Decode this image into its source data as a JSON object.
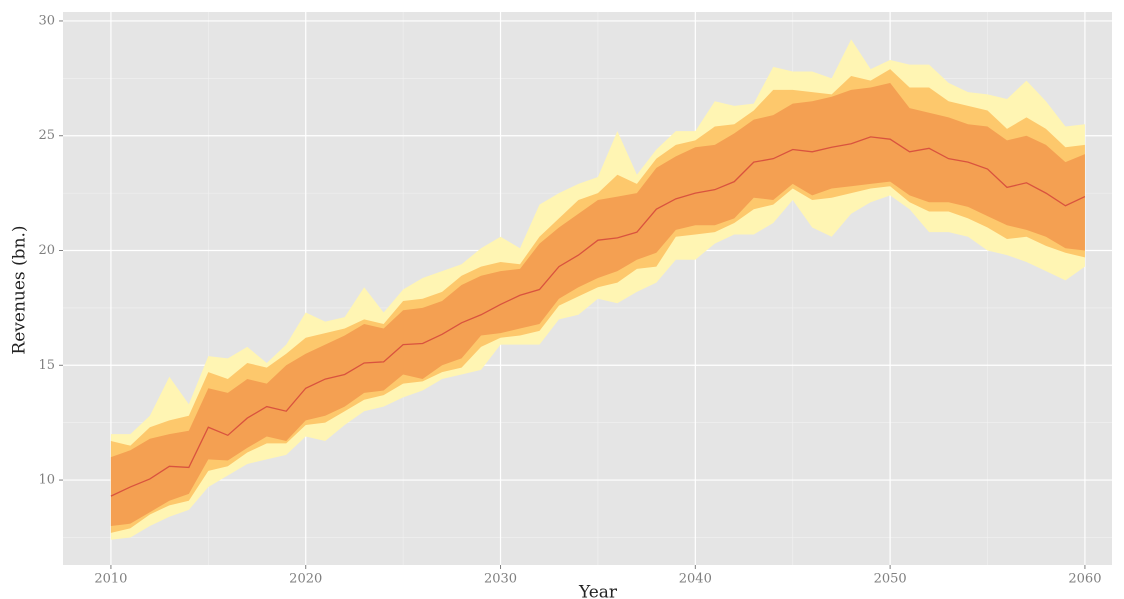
{
  "chart_data": {
    "type": "fan",
    "x_label": "Year",
    "y_label": "Revenues (bn.)",
    "x": [
      2010,
      2011,
      2012,
      2013,
      2014,
      2015,
      2016,
      2017,
      2018,
      2019,
      2020,
      2021,
      2022,
      2023,
      2024,
      2025,
      2026,
      2027,
      2028,
      2029,
      2030,
      2031,
      2032,
      2033,
      2034,
      2035,
      2036,
      2037,
      2038,
      2039,
      2040,
      2041,
      2042,
      2043,
      2044,
      2045,
      2046,
      2047,
      2048,
      2049,
      2050,
      2051,
      2052,
      2053,
      2054,
      2055,
      2056,
      2057,
      2058,
      2059,
      2060
    ],
    "bands": [
      {
        "color": "#fff5b3",
        "upper": [
          12.0,
          12.0,
          12.8,
          14.5,
          13.3,
          15.4,
          15.3,
          15.8,
          15.1,
          15.9,
          17.3,
          16.9,
          17.1,
          18.4,
          17.3,
          18.3,
          18.8,
          19.1,
          19.4,
          20.1,
          20.6,
          20.1,
          22.0,
          22.5,
          22.9,
          23.2,
          25.2,
          23.3,
          24.4,
          25.2,
          25.2,
          26.5,
          26.3,
          26.4,
          28.0,
          27.8,
          27.8,
          27.5,
          29.2,
          27.9,
          28.3,
          28.1,
          28.1,
          27.3,
          26.9,
          26.8,
          26.6,
          27.4,
          26.5,
          25.4,
          25.5
        ],
        "lower": [
          7.4,
          7.5,
          8.0,
          8.4,
          8.7,
          9.7,
          10.2,
          10.7,
          10.9,
          11.1,
          11.9,
          11.7,
          12.4,
          13.0,
          13.2,
          13.6,
          13.9,
          14.4,
          14.6,
          14.8,
          15.9,
          15.9,
          15.9,
          17.0,
          17.2,
          17.9,
          17.7,
          18.2,
          18.6,
          19.6,
          19.6,
          20.3,
          20.7,
          20.7,
          21.2,
          22.2,
          21.0,
          20.6,
          21.6,
          22.1,
          22.4,
          21.8,
          20.8,
          20.8,
          20.6,
          20.0,
          19.8,
          19.5,
          19.1,
          18.7,
          19.3
        ]
      },
      {
        "color": "#fdc86c",
        "upper": [
          11.7,
          11.5,
          12.3,
          12.6,
          12.8,
          14.7,
          14.4,
          15.1,
          14.9,
          15.5,
          16.2,
          16.4,
          16.6,
          17.0,
          16.8,
          17.8,
          17.9,
          18.2,
          18.9,
          19.3,
          19.5,
          19.4,
          20.6,
          21.4,
          22.2,
          22.5,
          23.3,
          22.9,
          24.0,
          24.6,
          24.8,
          25.4,
          25.5,
          26.1,
          27.0,
          27.0,
          26.9,
          26.8,
          27.6,
          27.4,
          27.9,
          27.1,
          27.1,
          26.5,
          26.3,
          26.1,
          25.3,
          25.8,
          25.3,
          24.5,
          24.6
        ],
        "lower": [
          7.7,
          7.9,
          8.5,
          8.9,
          9.1,
          10.4,
          10.6,
          11.2,
          11.6,
          11.6,
          12.4,
          12.5,
          13.0,
          13.5,
          13.7,
          14.2,
          14.3,
          14.7,
          14.9,
          15.8,
          16.2,
          16.3,
          16.5,
          17.6,
          18.0,
          18.4,
          18.6,
          19.2,
          19.3,
          20.6,
          20.7,
          20.8,
          21.2,
          21.8,
          22.0,
          22.7,
          22.2,
          22.3,
          22.5,
          22.7,
          22.8,
          22.1,
          21.7,
          21.7,
          21.4,
          21.0,
          20.5,
          20.6,
          20.2,
          19.9,
          19.7
        ]
      },
      {
        "color": "#f4a052",
        "upper": [
          11.0,
          11.3,
          11.8,
          12.0,
          12.15,
          14.0,
          13.8,
          14.4,
          14.2,
          15.0,
          15.5,
          15.9,
          16.3,
          16.8,
          16.6,
          17.4,
          17.5,
          17.8,
          18.5,
          18.9,
          19.1,
          19.2,
          20.3,
          21.0,
          21.6,
          22.2,
          22.35,
          22.5,
          23.6,
          24.1,
          24.5,
          24.6,
          25.1,
          25.7,
          25.9,
          26.4,
          26.5,
          26.7,
          27.0,
          27.1,
          27.3,
          26.2,
          26.0,
          25.8,
          25.5,
          25.4,
          24.8,
          25.0,
          24.6,
          23.85,
          24.2
        ],
        "lower": [
          8.0,
          8.1,
          8.6,
          9.1,
          9.4,
          10.9,
          10.85,
          11.4,
          11.9,
          11.7,
          12.6,
          12.8,
          13.2,
          13.8,
          13.9,
          14.6,
          14.4,
          15.0,
          15.3,
          16.3,
          16.4,
          16.6,
          16.8,
          17.9,
          18.4,
          18.8,
          19.1,
          19.6,
          19.9,
          20.9,
          21.1,
          21.1,
          21.4,
          22.3,
          22.2,
          22.9,
          22.4,
          22.7,
          22.8,
          22.9,
          23.0,
          22.4,
          22.1,
          22.1,
          21.9,
          21.5,
          21.1,
          20.9,
          20.6,
          20.1,
          20.0
        ]
      }
    ],
    "median": {
      "color": "#d9533e",
      "values": [
        9.3,
        9.7,
        10.05,
        10.6,
        10.55,
        12.3,
        11.95,
        12.7,
        13.2,
        13.0,
        14.0,
        14.4,
        14.6,
        15.1,
        15.15,
        15.9,
        15.95,
        16.35,
        16.85,
        17.2,
        17.65,
        18.05,
        18.3,
        19.3,
        19.8,
        20.45,
        20.55,
        20.8,
        21.8,
        22.25,
        22.5,
        22.65,
        23.0,
        23.85,
        24.0,
        24.4,
        24.3,
        24.5,
        24.65,
        24.95,
        24.85,
        24.3,
        24.45,
        24.0,
        23.85,
        23.55,
        22.75,
        22.95,
        22.5,
        21.95,
        22.35
      ]
    },
    "xlim": [
      2007.54,
      2061.39
    ],
    "ylim": [
      6.3,
      30.39
    ],
    "xticks": [
      2010,
      2020,
      2030,
      2040,
      2050,
      2060
    ],
    "yticks": [
      10,
      15,
      20,
      25,
      30
    ],
    "xminor": [
      2015,
      2025,
      2035,
      2045,
      2055
    ],
    "yminor": [
      7.5,
      12.5,
      17.5,
      22.5,
      27.5
    ],
    "grid": true
  }
}
